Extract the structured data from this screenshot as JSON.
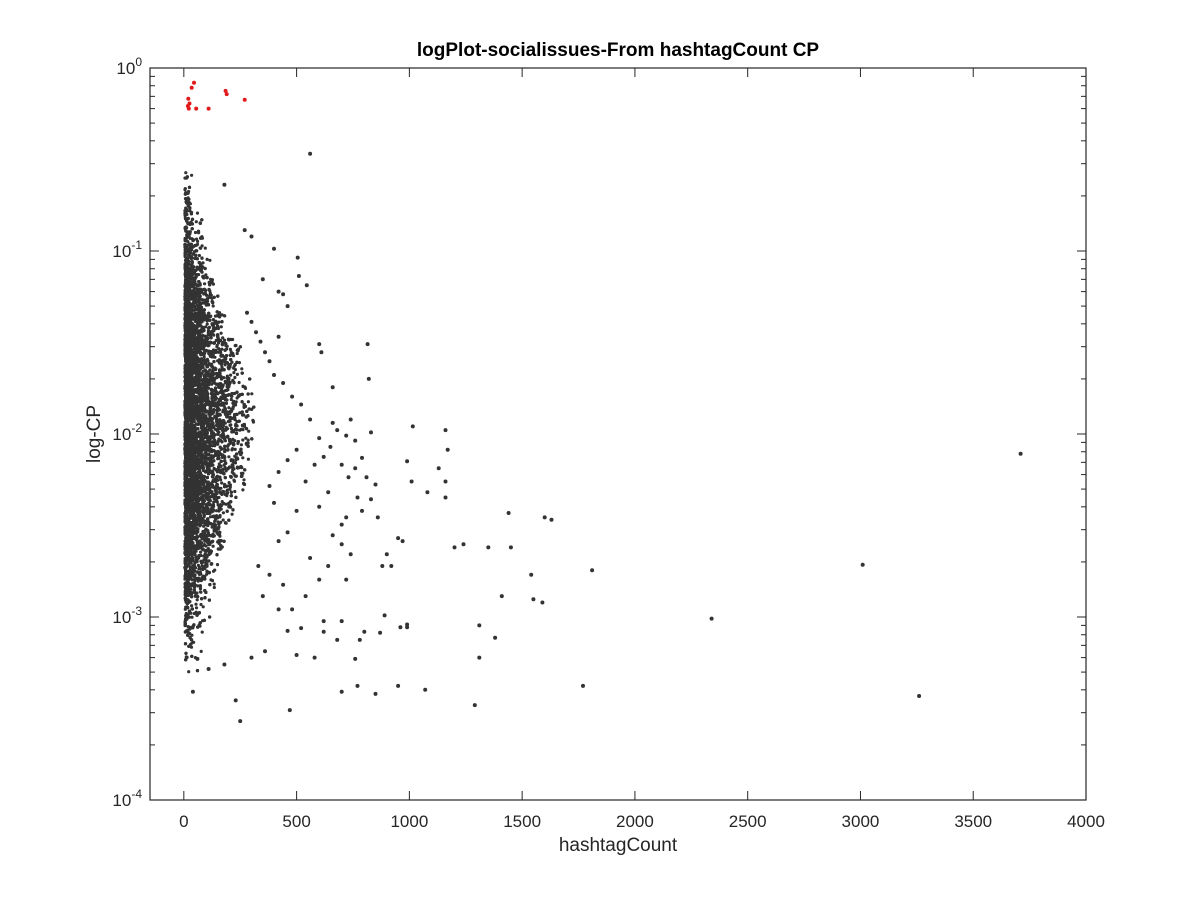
{
  "chart_data": {
    "type": "scatter",
    "title": "logPlot-socialissues-From hashtagCount CP",
    "xlabel": "hashtagCount",
    "ylabel": "log-CP",
    "xlim": [
      -150,
      4000
    ],
    "ylim": [
      0.0001,
      1
    ],
    "yscale": "log",
    "grid": false,
    "legend": "none",
    "x_ticks": [
      0,
      500,
      1000,
      1500,
      2000,
      2500,
      3000,
      3500,
      4000
    ],
    "x_tick_labels": [
      "0",
      "500",
      "1000",
      "1500",
      "2000",
      "2500",
      "3000",
      "3500",
      "4000"
    ],
    "y_ticks": [
      0.0001,
      0.001,
      0.01,
      0.1,
      1
    ],
    "y_tick_labels": [
      {
        "base": "10",
        "exp": "-4"
      },
      {
        "base": "10",
        "exp": "-3"
      },
      {
        "base": "10",
        "exp": "-2"
      },
      {
        "base": "10",
        "exp": "-1"
      },
      {
        "base": "10",
        "exp": "0"
      }
    ],
    "dense_cluster": {
      "x_range": [
        5,
        300
      ],
      "y_range": [
        0.0005,
        0.55
      ],
      "approx_points": 9000,
      "color": "#333333"
    },
    "series": [
      {
        "color": "#333333",
        "points": [
          [
            560,
            0.34
          ],
          [
            180,
            0.23
          ],
          [
            270,
            0.13
          ],
          [
            300,
            0.12
          ],
          [
            400,
            0.103
          ],
          [
            505,
            0.092
          ],
          [
            510,
            0.073
          ],
          [
            545,
            0.065
          ],
          [
            440,
            0.058
          ],
          [
            350,
            0.07
          ],
          [
            420,
            0.06
          ],
          [
            460,
            0.05
          ],
          [
            600,
            0.031
          ],
          [
            610,
            0.028
          ],
          [
            815,
            0.031
          ],
          [
            820,
            0.02
          ],
          [
            660,
            0.018
          ],
          [
            420,
            0.034
          ],
          [
            830,
            0.0102
          ],
          [
            1015,
            0.011
          ],
          [
            1160,
            0.0105
          ],
          [
            1170,
            0.0082
          ],
          [
            1130,
            0.0065
          ],
          [
            1160,
            0.0055
          ],
          [
            1160,
            0.0045
          ],
          [
            1010,
            0.0055
          ],
          [
            990,
            0.0071
          ],
          [
            850,
            0.0053
          ],
          [
            770,
            0.0045
          ],
          [
            790,
            0.0038
          ],
          [
            720,
            0.0035
          ],
          [
            700,
            0.0032
          ],
          [
            860,
            0.0035
          ],
          [
            1080,
            0.0048
          ],
          [
            1440,
            0.0037
          ],
          [
            1600,
            0.0035
          ],
          [
            1630,
            0.0034
          ],
          [
            1240,
            0.0025
          ],
          [
            1200,
            0.0024
          ],
          [
            1350,
            0.0024
          ],
          [
            1450,
            0.0024
          ],
          [
            1540,
            0.0017
          ],
          [
            1810,
            0.0018
          ],
          [
            1410,
            0.0013
          ],
          [
            1550,
            0.00125
          ],
          [
            1590,
            0.0012
          ],
          [
            1380,
            0.00077
          ],
          [
            1310,
            0.0009
          ],
          [
            2340,
            0.00098
          ],
          [
            3010,
            0.00193
          ],
          [
            3710,
            0.0078
          ],
          [
            950,
            0.0027
          ],
          [
            970,
            0.0026
          ],
          [
            900,
            0.0022
          ],
          [
            880,
            0.0019
          ],
          [
            920,
            0.0019
          ],
          [
            890,
            0.00102
          ],
          [
            990,
            0.00091
          ],
          [
            960,
            0.00088
          ],
          [
            990,
            0.00088
          ],
          [
            870,
            0.00082
          ],
          [
            800,
            0.00083
          ],
          [
            780,
            0.00075
          ],
          [
            760,
            0.00059
          ],
          [
            680,
            0.00075
          ],
          [
            700,
            0.00095
          ],
          [
            620,
            0.00095
          ],
          [
            520,
            0.00087
          ],
          [
            460,
            0.00084
          ],
          [
            700,
            0.00039
          ],
          [
            770,
            0.00042
          ],
          [
            850,
            0.00038
          ],
          [
            950,
            0.00042
          ],
          [
            1070,
            0.0004
          ],
          [
            1310,
            0.0006
          ],
          [
            1290,
            0.00033
          ],
          [
            1770,
            0.00042
          ],
          [
            3260,
            0.00037
          ],
          [
            470,
            0.00031
          ],
          [
            230,
            0.00035
          ],
          [
            250,
            0.00027
          ],
          [
            40,
            0.00039
          ],
          [
            60,
            0.00059
          ],
          [
            110,
            0.00052
          ],
          [
            180,
            0.00055
          ],
          [
            300,
            0.0006
          ],
          [
            360,
            0.00065
          ],
          [
            500,
            0.00062
          ],
          [
            580,
            0.0006
          ],
          [
            620,
            0.00083
          ],
          [
            640,
            0.0019
          ],
          [
            600,
            0.0016
          ],
          [
            560,
            0.0021
          ],
          [
            540,
            0.0013
          ],
          [
            480,
            0.0011
          ],
          [
            440,
            0.0015
          ],
          [
            420,
            0.0011
          ],
          [
            380,
            0.0017
          ],
          [
            350,
            0.0013
          ],
          [
            330,
            0.0019
          ],
          [
            600,
            0.004
          ],
          [
            640,
            0.0048
          ],
          [
            660,
            0.0028
          ],
          [
            700,
            0.0025
          ],
          [
            720,
            0.0016
          ],
          [
            740,
            0.0022
          ],
          [
            540,
            0.0055
          ],
          [
            580,
            0.0068
          ],
          [
            620,
            0.0075
          ],
          [
            650,
            0.0085
          ],
          [
            600,
            0.0095
          ],
          [
            560,
            0.012
          ],
          [
            520,
            0.0145
          ],
          [
            480,
            0.016
          ],
          [
            440,
            0.019
          ],
          [
            400,
            0.021
          ],
          [
            380,
            0.025
          ],
          [
            360,
            0.028
          ],
          [
            340,
            0.032
          ],
          [
            320,
            0.036
          ],
          [
            300,
            0.041
          ],
          [
            280,
            0.046
          ],
          [
            400,
            0.0042
          ],
          [
            380,
            0.0052
          ],
          [
            420,
            0.0062
          ],
          [
            460,
            0.0072
          ],
          [
            500,
            0.0082
          ],
          [
            500,
            0.0038
          ],
          [
            460,
            0.0029
          ],
          [
            420,
            0.0026
          ],
          [
            660,
            0.0115
          ],
          [
            680,
            0.0105
          ],
          [
            720,
            0.0098
          ],
          [
            740,
            0.012
          ],
          [
            760,
            0.0092
          ],
          [
            700,
            0.0068
          ],
          [
            730,
            0.0058
          ],
          [
            760,
            0.0065
          ],
          [
            790,
            0.0074
          ],
          [
            810,
            0.0058
          ],
          [
            830,
            0.0044
          ]
        ]
      },
      {
        "color": "#e31a1c",
        "points": [
          [
            45,
            0.83
          ],
          [
            35,
            0.78
          ],
          [
            185,
            0.75
          ],
          [
            190,
            0.72
          ],
          [
            20,
            0.68
          ],
          [
            270,
            0.67
          ],
          [
            25,
            0.64
          ],
          [
            18,
            0.62
          ],
          [
            55,
            0.6
          ],
          [
            110,
            0.6
          ],
          [
            22,
            0.6
          ]
        ]
      }
    ]
  }
}
